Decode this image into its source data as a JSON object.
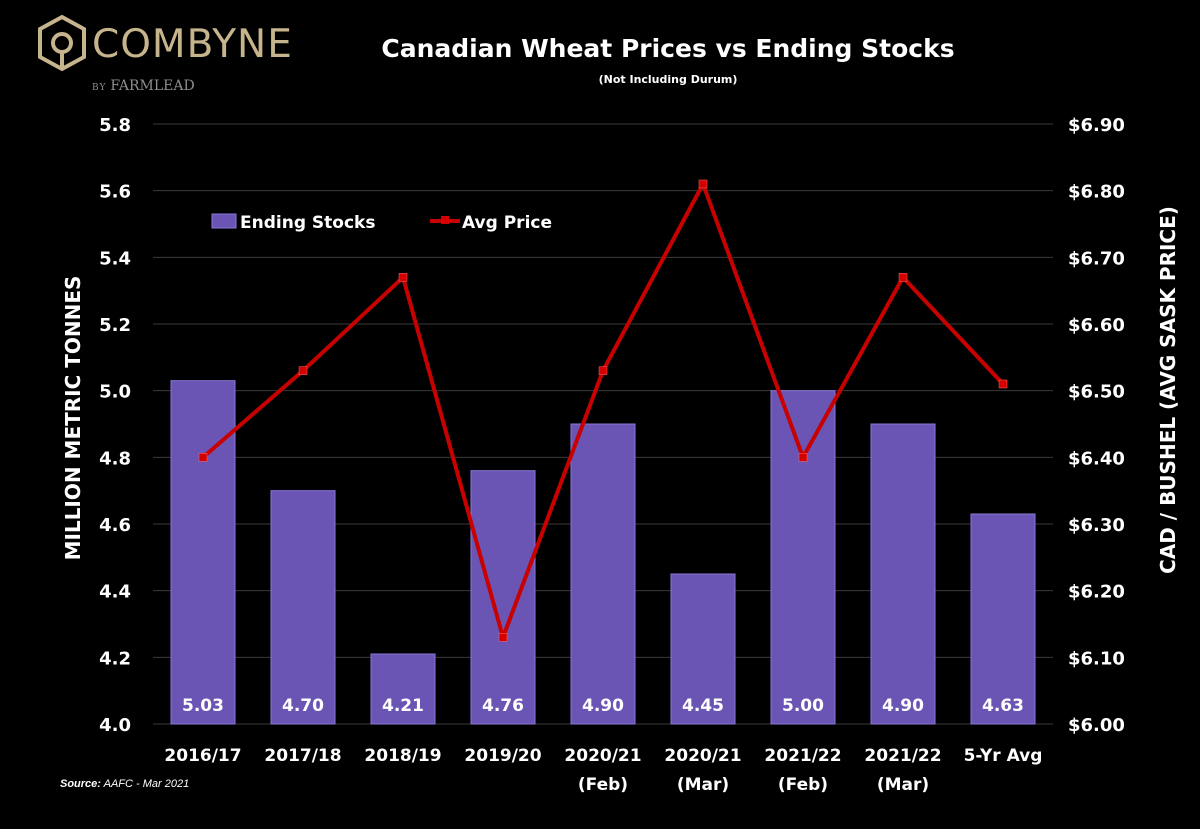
{
  "logo": {
    "brand": "COMBYNE",
    "by": "BY",
    "partner": "FARMLEAD"
  },
  "source": {
    "label": "Source:",
    "text": "AAFC - Mar 2021"
  },
  "colors": {
    "bar": "#6a55b5",
    "bar_stroke": "#8a78d6",
    "line": "#c80000",
    "marker": "#d40000",
    "grid": "#3a3a3a",
    "background": "#000000"
  },
  "chart_data": {
    "type": "bar+line",
    "title": "Canadian Wheat Prices vs Ending Stocks",
    "subtitle": "(Not Including Durum)",
    "categories": [
      [
        "2016/17"
      ],
      [
        "2017/18"
      ],
      [
        "2018/19"
      ],
      [
        "2019/20"
      ],
      [
        "2020/21",
        "(Feb)"
      ],
      [
        "2020/21",
        "(Mar)"
      ],
      [
        "2021/22",
        "(Feb)"
      ],
      [
        "2021/22",
        "(Mar)"
      ],
      [
        "5-Yr Avg"
      ]
    ],
    "ylabel_left": "MILLION METRIC TONNES",
    "ylabel_right": "CAD / BUSHEL (AVG SASK PRICE)",
    "ylim_left": [
      4.0,
      5.8
    ],
    "ylim_right": [
      6.0,
      6.9
    ],
    "yticks_left": [
      "4.0",
      "4.2",
      "4.4",
      "4.6",
      "4.8",
      "5.0",
      "5.2",
      "5.4",
      "5.6",
      "5.8"
    ],
    "yticks_right": [
      "$6.00",
      "$6.10",
      "$6.20",
      "$6.30",
      "$6.40",
      "$6.50",
      "$6.60",
      "$6.70",
      "$6.80",
      "$6.90"
    ],
    "grid": true,
    "legend_position": "top-left",
    "series": [
      {
        "name": "Ending Stocks",
        "type": "bar",
        "axis": "left",
        "values": [
          5.03,
          4.7,
          4.21,
          4.76,
          4.9,
          4.45,
          5.0,
          4.9,
          4.63
        ],
        "labels": [
          "5.03",
          "4.70",
          "4.21",
          "4.76",
          "4.90",
          "4.45",
          "5.00",
          "4.90",
          "4.63"
        ]
      },
      {
        "name": "Avg Price",
        "type": "line",
        "axis": "right",
        "values": [
          6.4,
          6.53,
          6.67,
          6.13,
          6.53,
          6.81,
          6.4,
          6.67,
          6.51
        ]
      }
    ]
  }
}
